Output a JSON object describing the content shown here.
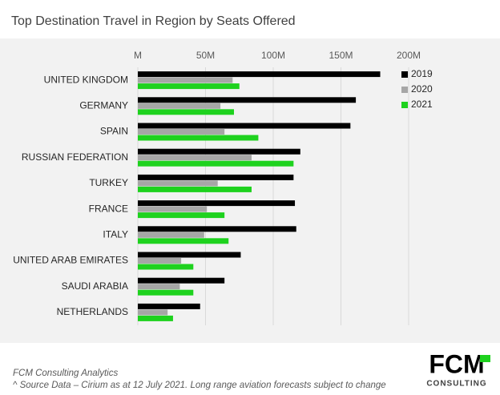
{
  "chart_data": {
    "type": "hbar",
    "title": "Top Destination Travel in Region by Seats Offered",
    "categories": [
      "UNITED KINGDOM",
      "GERMANY",
      "SPAIN",
      "RUSSIAN FEDERATION",
      "TURKEY",
      "FRANCE",
      "ITALY",
      "UNITED ARAB EMIRATES",
      "SAUDI ARABIA",
      "NETHERLANDS"
    ],
    "series": [
      {
        "name": "2019",
        "color": "#000000",
        "values": [
          179,
          161,
          157,
          120,
          115,
          116,
          117,
          76,
          64,
          46
        ]
      },
      {
        "name": "2020",
        "color": "#a6a6a6",
        "values": [
          70,
          61,
          64,
          84,
          59,
          51,
          49,
          32,
          31,
          22
        ]
      },
      {
        "name": "2021",
        "color": "#1ed21e",
        "values": [
          75,
          71,
          89,
          115,
          84,
          64,
          67,
          41,
          41,
          26
        ]
      }
    ],
    "xlim": [
      0,
      200
    ],
    "xticks": [
      {
        "value": 0,
        "label": "M"
      },
      {
        "value": 50,
        "label": "50M"
      },
      {
        "value": 100,
        "label": "100M"
      },
      {
        "value": 150,
        "label": "150M"
      },
      {
        "value": 200,
        "label": "200M"
      }
    ],
    "grid": true,
    "legend": "right"
  },
  "footer": {
    "source_title": "FCM Consulting Analytics",
    "source_note": "^ Source Data – Cirium as at 12 July 2021. Long range aviation forecasts subject to change",
    "logo": "FCM",
    "logo_sub": "CONSULTING"
  }
}
